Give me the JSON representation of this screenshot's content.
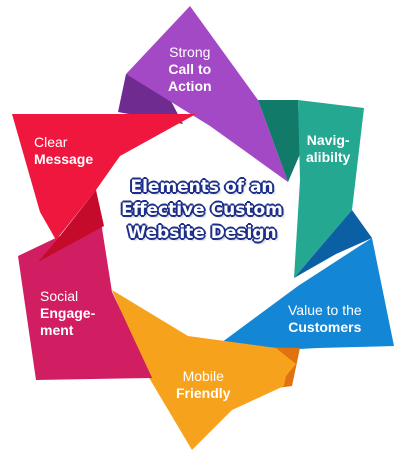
{
  "center_title": [
    "Elements of an",
    "Effective Custom",
    "Website Design"
  ],
  "segments": [
    {
      "id": "strong-call-to-action",
      "line1": "Strong",
      "line2": "Call to",
      "line3": "Action",
      "color": "#a349c6",
      "dark": "#6f2b8f"
    },
    {
      "id": "navigability",
      "line1": "",
      "line2": "Navig-",
      "line3": "alibilty",
      "color": "#25a892",
      "dark": "#127a68"
    },
    {
      "id": "value-to-the-customers",
      "line1": "",
      "line2": "Value to the",
      "line3": "Customers",
      "color": "#1486d6",
      "dark": "#0b5fa3"
    },
    {
      "id": "mobile-friendly",
      "line1": "",
      "line2": "Mobile",
      "line3": "Friendly",
      "color": "#f7a21c",
      "dark": "#e0720f"
    },
    {
      "id": "social-engagement",
      "line1": "Social",
      "line2": "Engage-",
      "line3": "ment",
      "color": "#d11e62",
      "dark": "#a3114a"
    },
    {
      "id": "clear-message",
      "line1": "",
      "line2": "Clear",
      "line3": "Message",
      "color": "#f0173f",
      "dark": "#c50b2c"
    }
  ]
}
